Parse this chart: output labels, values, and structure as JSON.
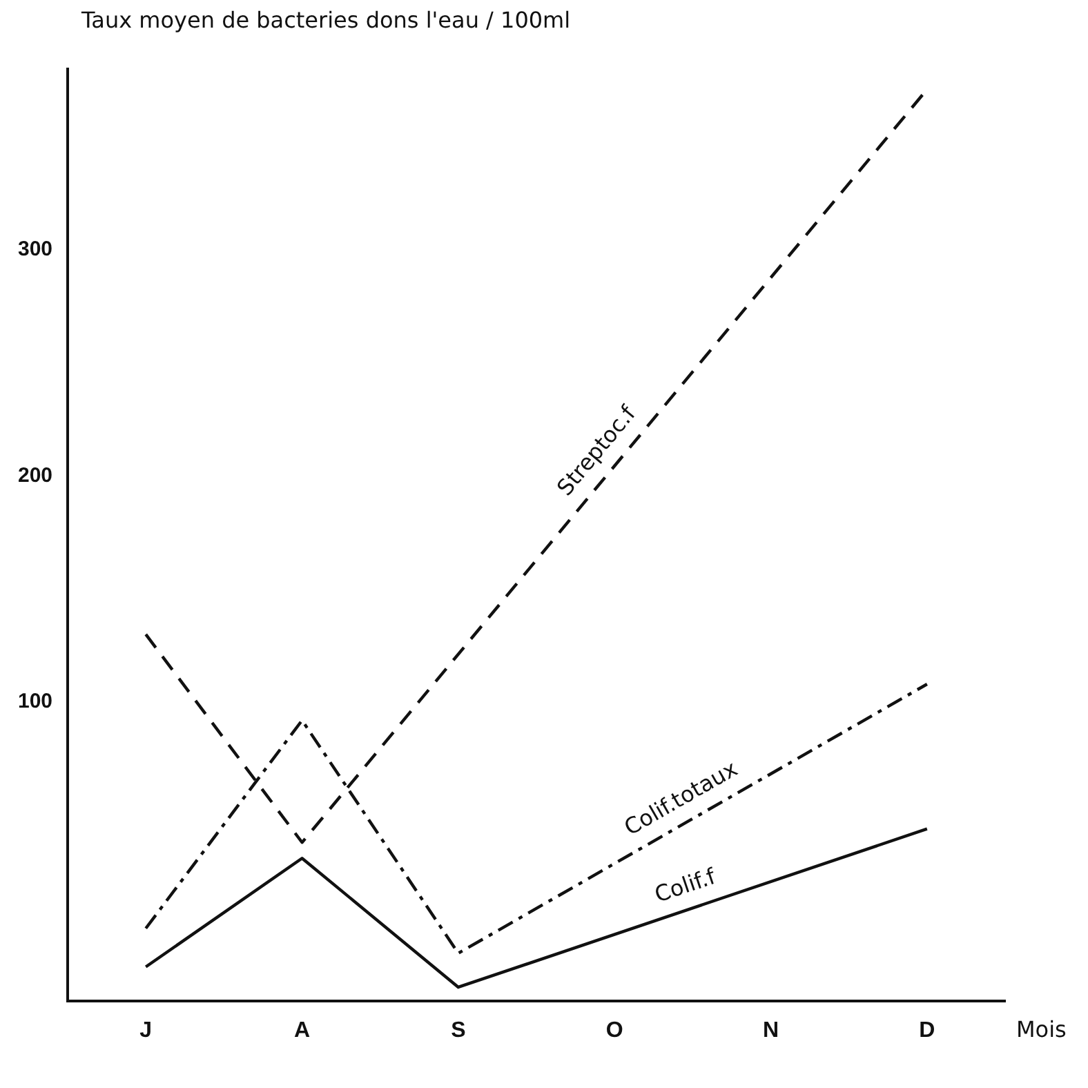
{
  "chart_data": {
    "type": "line",
    "ylabel": "Taux moyen de bacteries dons l'eau / 100ml",
    "xlabel": "Mois",
    "categories": [
      "J",
      "A",
      "S",
      "O",
      "N",
      "D"
    ],
    "series": [
      {
        "name": "Streptoc.f",
        "color": "#111111",
        "line_style": "dashed",
        "values": [
          130,
          38,
          null,
          null,
          null,
          371
        ]
      },
      {
        "name": "Colif.totaux",
        "color": "#111111",
        "line_style": "dashdot",
        "values": [
          0,
          92,
          -11,
          null,
          null,
          108
        ]
      },
      {
        "name": "Colif.f",
        "color": "#111111",
        "line_style": "solid",
        "values": [
          -17,
          31,
          -26,
          null,
          null,
          44
        ]
      }
    ],
    "ylim": [
      -32,
      380
    ],
    "yticks": [
      100,
      200,
      300
    ],
    "grid": false,
    "legend": false,
    "marker": "none"
  }
}
